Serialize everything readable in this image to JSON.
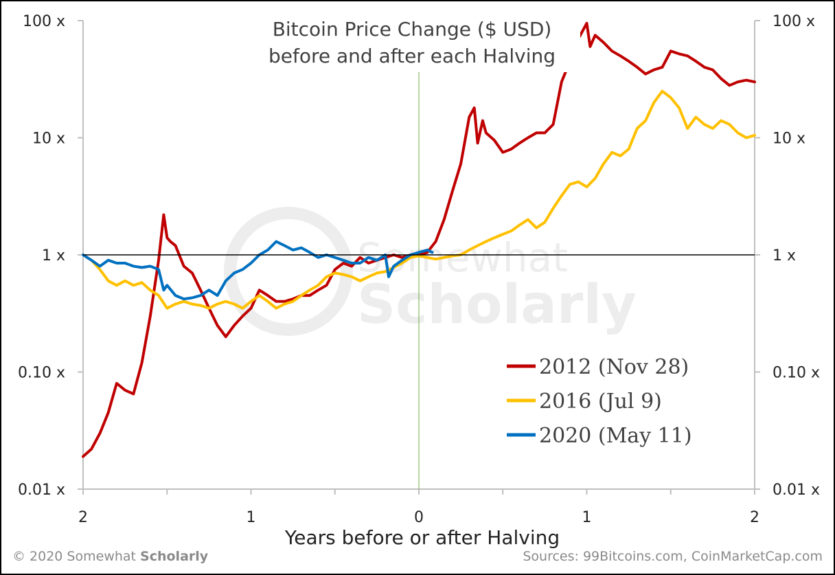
{
  "chart_data": {
    "type": "line",
    "title": "Bitcoin Price Change ($ USD)",
    "subtitle": "before and after each Halving",
    "xlabel": "Years before or after Halving",
    "ylabel": "",
    "x_range": [
      -2,
      2
    ],
    "x_ticks": [
      -2,
      -1,
      0,
      1,
      2
    ],
    "x_tick_labels": [
      "2",
      "1",
      "0",
      "1",
      "2"
    ],
    "y_scale": "log",
    "y_range": [
      0.01,
      100
    ],
    "y_ticks": [
      0.01,
      0.1,
      1,
      10,
      100
    ],
    "y_tick_labels": [
      "0.01 x",
      "0.10 x",
      "1 x",
      "10 x",
      "100 x"
    ],
    "reference_line": {
      "y": 1
    },
    "halving_marker": {
      "x": 0
    },
    "legend_position": "bottom-right",
    "series": [
      {
        "name": "2012 (Nov 28)",
        "color": "#c00000",
        "x": [
          -2.0,
          -1.95,
          -1.9,
          -1.85,
          -1.8,
          -1.75,
          -1.7,
          -1.65,
          -1.6,
          -1.55,
          -1.52,
          -1.5,
          -1.48,
          -1.45,
          -1.4,
          -1.35,
          -1.3,
          -1.25,
          -1.2,
          -1.15,
          -1.1,
          -1.05,
          -1.0,
          -0.95,
          -0.9,
          -0.85,
          -0.8,
          -0.75,
          -0.7,
          -0.65,
          -0.6,
          -0.55,
          -0.5,
          -0.45,
          -0.4,
          -0.35,
          -0.3,
          -0.25,
          -0.2,
          -0.15,
          -0.1,
          -0.05,
          0.0,
          0.05,
          0.1,
          0.15,
          0.2,
          0.25,
          0.3,
          0.33,
          0.35,
          0.38,
          0.4,
          0.45,
          0.5,
          0.55,
          0.6,
          0.65,
          0.7,
          0.75,
          0.8,
          0.85,
          0.9,
          0.95,
          1.0,
          1.02,
          1.05,
          1.1,
          1.15,
          1.2,
          1.25,
          1.3,
          1.35,
          1.4,
          1.45,
          1.5,
          1.55,
          1.6,
          1.65,
          1.7,
          1.75,
          1.8,
          1.85,
          1.9,
          1.95,
          2.0
        ],
        "values": [
          0.019,
          0.022,
          0.03,
          0.045,
          0.08,
          0.07,
          0.065,
          0.12,
          0.3,
          0.9,
          2.2,
          1.4,
          1.3,
          1.2,
          0.8,
          0.7,
          0.5,
          0.35,
          0.25,
          0.2,
          0.25,
          0.3,
          0.35,
          0.5,
          0.45,
          0.4,
          0.4,
          0.42,
          0.45,
          0.45,
          0.5,
          0.55,
          0.75,
          0.85,
          0.8,
          0.95,
          0.85,
          0.9,
          0.95,
          1.0,
          0.95,
          1.0,
          1.0,
          1.05,
          1.3,
          2.0,
          3.5,
          6.0,
          15.0,
          18.0,
          9.0,
          14.0,
          11.0,
          9.5,
          7.5,
          8.0,
          9.0,
          10.0,
          11.0,
          11.0,
          13.0,
          30.0,
          45.0,
          70.0,
          95.0,
          60.0,
          75.0,
          65.0,
          55.0,
          50.0,
          45.0,
          40.0,
          35.0,
          38.0,
          40.0,
          55.0,
          52.0,
          50.0,
          45.0,
          40.0,
          38.0,
          32.0,
          28.0,
          30.0,
          31.0,
          30.0
        ]
      },
      {
        "name": "2016 (Jul 9)",
        "color": "#ffc000",
        "x": [
          -2.0,
          -1.95,
          -1.9,
          -1.85,
          -1.8,
          -1.75,
          -1.7,
          -1.65,
          -1.6,
          -1.55,
          -1.5,
          -1.45,
          -1.4,
          -1.35,
          -1.3,
          -1.25,
          -1.2,
          -1.15,
          -1.1,
          -1.05,
          -1.0,
          -0.95,
          -0.9,
          -0.85,
          -0.8,
          -0.75,
          -0.7,
          -0.65,
          -0.6,
          -0.55,
          -0.5,
          -0.45,
          -0.4,
          -0.35,
          -0.3,
          -0.25,
          -0.2,
          -0.15,
          -0.1,
          -0.05,
          0.0,
          0.05,
          0.1,
          0.15,
          0.2,
          0.25,
          0.3,
          0.35,
          0.4,
          0.45,
          0.5,
          0.55,
          0.6,
          0.65,
          0.7,
          0.75,
          0.8,
          0.85,
          0.9,
          0.95,
          1.0,
          1.05,
          1.1,
          1.15,
          1.2,
          1.25,
          1.3,
          1.35,
          1.4,
          1.45,
          1.5,
          1.55,
          1.6,
          1.65,
          1.7,
          1.75,
          1.8,
          1.85,
          1.9,
          1.95,
          2.0
        ],
        "values": [
          1.0,
          0.9,
          0.75,
          0.6,
          0.55,
          0.6,
          0.55,
          0.58,
          0.5,
          0.45,
          0.35,
          0.38,
          0.4,
          0.38,
          0.37,
          0.35,
          0.38,
          0.4,
          0.38,
          0.35,
          0.4,
          0.45,
          0.4,
          0.35,
          0.38,
          0.4,
          0.45,
          0.5,
          0.55,
          0.65,
          0.7,
          0.68,
          0.65,
          0.6,
          0.65,
          0.7,
          0.72,
          0.78,
          0.85,
          0.95,
          0.98,
          0.95,
          0.92,
          0.95,
          0.98,
          1.0,
          1.1,
          1.2,
          1.3,
          1.4,
          1.5,
          1.6,
          1.8,
          2.0,
          1.7,
          1.9,
          2.5,
          3.2,
          4.0,
          4.2,
          3.8,
          4.5,
          6.0,
          7.5,
          7.0,
          8.0,
          12.0,
          14.0,
          20.0,
          25.0,
          22.0,
          18.0,
          12.0,
          15.0,
          13.0,
          12.0,
          14.0,
          13.0,
          11.0,
          10.0,
          10.5
        ]
      },
      {
        "name": "2020 (May 11)",
        "color": "#0070c0",
        "x": [
          -2.0,
          -1.95,
          -1.9,
          -1.85,
          -1.8,
          -1.75,
          -1.7,
          -1.65,
          -1.6,
          -1.55,
          -1.52,
          -1.5,
          -1.45,
          -1.4,
          -1.35,
          -1.3,
          -1.25,
          -1.2,
          -1.15,
          -1.1,
          -1.05,
          -1.0,
          -0.95,
          -0.9,
          -0.85,
          -0.8,
          -0.75,
          -0.7,
          -0.65,
          -0.6,
          -0.55,
          -0.5,
          -0.45,
          -0.4,
          -0.35,
          -0.3,
          -0.25,
          -0.2,
          -0.18,
          -0.15,
          -0.1,
          -0.05,
          0.0,
          0.05,
          0.08
        ],
        "values": [
          1.0,
          0.9,
          0.8,
          0.9,
          0.85,
          0.85,
          0.8,
          0.78,
          0.8,
          0.75,
          0.5,
          0.55,
          0.45,
          0.42,
          0.43,
          0.45,
          0.5,
          0.45,
          0.6,
          0.7,
          0.75,
          0.85,
          1.0,
          1.1,
          1.3,
          1.2,
          1.1,
          1.15,
          1.05,
          0.95,
          1.0,
          0.95,
          0.9,
          0.85,
          0.85,
          0.95,
          0.9,
          1.0,
          0.65,
          0.8,
          0.9,
          1.0,
          1.05,
          1.1,
          1.05
        ]
      }
    ]
  },
  "watermark": {
    "line1": "Somewhat",
    "line2": "Scholarly"
  },
  "footer": {
    "copyright_prefix": "© 2020 Somewhat ",
    "copyright_bold": "Scholarly",
    "sources": "Sources: 99Bitcoins.com, CoinMarketCap.com"
  }
}
